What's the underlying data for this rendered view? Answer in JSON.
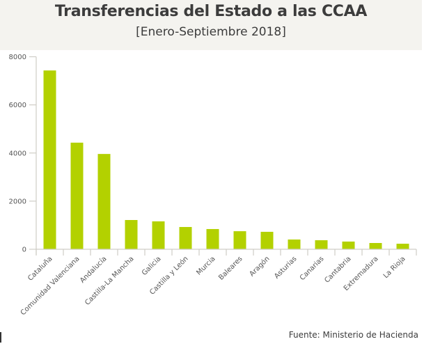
{
  "chart_data": {
    "type": "bar",
    "title": "Transferencias del Estado a las CCAA",
    "subtitle": "[Enero-Septiembre 2018]",
    "xlabel": "",
    "ylabel": "",
    "ylim": [
      0,
      8000
    ],
    "yticks": [
      "0",
      "2000",
      "4000",
      "6000",
      "8000"
    ],
    "ytick_values": [
      0,
      2000,
      4000,
      6000,
      8000
    ],
    "grid": false,
    "categories": [
      "Cataluña",
      "Comunidad Valenciana",
      "Andalucía",
      "Castilla-La Mancha",
      "Galicia",
      "Castilla y León",
      "Murcia",
      "Baleares",
      "Aragón",
      "Asturias",
      "Canarias",
      "Cantabria",
      "Extremadura",
      "La Rioja"
    ],
    "values": [
      7430,
      4430,
      3960,
      1215,
      1160,
      925,
      840,
      750,
      725,
      405,
      375,
      320,
      260,
      230
    ],
    "bar_color": "#b3d100",
    "axis_color": "#cfcdc6"
  },
  "source": "Fuente: Ministerio de Hacienda"
}
